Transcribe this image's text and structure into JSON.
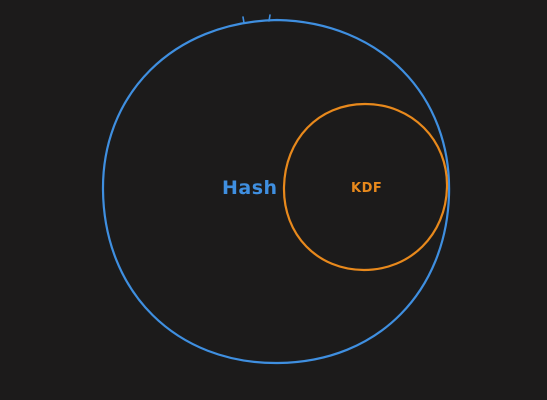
{
  "diagram": {
    "background": "#1c1b1b",
    "outer_set": {
      "label": "Hash",
      "color": "#3f8fe0"
    },
    "inner_set": {
      "label": "KDF",
      "color": "#e8891c"
    }
  }
}
